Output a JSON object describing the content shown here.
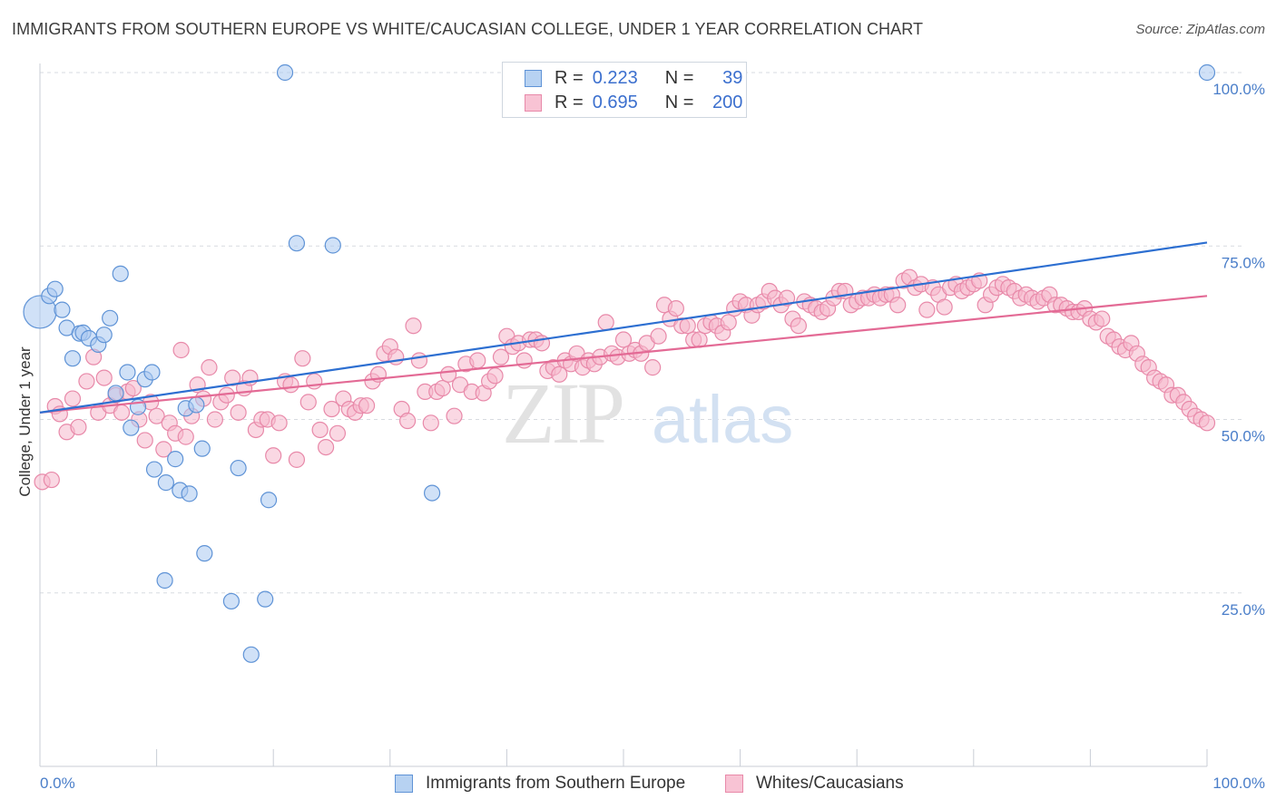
{
  "title": "IMMIGRANTS FROM SOUTHERN EUROPE VS WHITE/CAUCASIAN COLLEGE, UNDER 1 YEAR CORRELATION CHART",
  "source": "Source: ZipAtlas.com",
  "watermark": {
    "zip": "ZIP",
    "atlas": "atlas"
  },
  "legend": {
    "rows": [
      {
        "r_label": "R =",
        "r_value": "0.223",
        "n_label": "N =",
        "n_value": "39"
      },
      {
        "r_label": "R =",
        "r_value": "0.695",
        "n_label": "N =",
        "n_value": "200"
      }
    ]
  },
  "bottom_legend": {
    "series_a": "Immigrants from Southern Europe",
    "series_b": "Whites/Caucasians"
  },
  "colors": {
    "blue_fill": "#a9c8f0",
    "blue_stroke": "#5f93d6",
    "blue_line": "#2d6fd1",
    "pink_fill": "#f6b8cc",
    "pink_stroke": "#e889a9",
    "pink_line": "#e36a95",
    "grid": "#d7dbe0",
    "tick_text": "#4a7ec9"
  },
  "chart_data": {
    "type": "scatter",
    "title": "IMMIGRANTS FROM SOUTHERN EUROPE VS WHITE/CAUCASIAN COLLEGE, UNDER 1 YEAR CORRELATION CHART",
    "xlabel": "",
    "ylabel": "College, Under 1 year",
    "xlim": [
      0,
      100
    ],
    "ylim": [
      0,
      104
    ],
    "x_tick_labels": [
      "0.0%",
      "100.0%"
    ],
    "y_ticks": [
      {
        "value": 25,
        "label": "25.0%"
      },
      {
        "value": 50,
        "label": "50.0%"
      },
      {
        "value": 75,
        "label": "75.0%"
      },
      {
        "value": 100,
        "label": "100.0%"
      }
    ],
    "grid": "horizontal dashed",
    "legend_position": "top-center",
    "series": [
      {
        "name": "Immigrants from Southern Europe",
        "color": "#a9c8f0",
        "R": 0.223,
        "N": 39,
        "trend": {
          "x": [
            0,
            100
          ],
          "y": [
            51,
            75.5
          ]
        },
        "points": [
          [
            0.0,
            65.5,
            "big"
          ],
          [
            0.8,
            67.8
          ],
          [
            1.3,
            68.8
          ],
          [
            1.9,
            65.8
          ],
          [
            2.3,
            63.2
          ],
          [
            2.8,
            58.8
          ],
          [
            3.4,
            62.4
          ],
          [
            3.7,
            62.5
          ],
          [
            4.2,
            61.7
          ],
          [
            5.0,
            60.8
          ],
          [
            5.5,
            62.2
          ],
          [
            6.0,
            64.6
          ],
          [
            6.5,
            53.8
          ],
          [
            6.9,
            71.0
          ],
          [
            7.5,
            56.8
          ],
          [
            7.8,
            48.8
          ],
          [
            8.4,
            51.8
          ],
          [
            9.0,
            55.8
          ],
          [
            9.6,
            56.8
          ],
          [
            9.8,
            42.8
          ],
          [
            10.8,
            40.9
          ],
          [
            11.6,
            44.3
          ],
          [
            12.0,
            39.8
          ],
          [
            12.5,
            51.6
          ],
          [
            12.8,
            39.3
          ],
          [
            13.4,
            52.1
          ],
          [
            13.9,
            45.8
          ],
          [
            14.1,
            30.7
          ],
          [
            10.7,
            26.8
          ],
          [
            16.4,
            23.8
          ],
          [
            17.0,
            43.0
          ],
          [
            18.1,
            16.1
          ],
          [
            19.3,
            24.1
          ],
          [
            19.6,
            38.4
          ],
          [
            21.0,
            100.0
          ],
          [
            22.0,
            75.4
          ],
          [
            25.1,
            75.1
          ],
          [
            33.6,
            39.4
          ],
          [
            100.0,
            100.0
          ]
        ]
      },
      {
        "name": "Whites/Caucasians",
        "color": "#f6b8cc",
        "R": 0.695,
        "N": 200,
        "trend": {
          "x": [
            0,
            100
          ],
          "y": [
            51,
            67.8
          ]
        },
        "points": [
          [
            0.2,
            41.0
          ],
          [
            1.0,
            41.3
          ],
          [
            1.3,
            51.9
          ],
          [
            1.7,
            50.8
          ],
          [
            2.3,
            48.2
          ],
          [
            2.8,
            53.0
          ],
          [
            3.3,
            48.9
          ],
          [
            4.0,
            55.5
          ],
          [
            4.6,
            59.0
          ],
          [
            5.0,
            51.0
          ],
          [
            5.5,
            56.0
          ],
          [
            6.0,
            52.0
          ],
          [
            6.5,
            53.5
          ],
          [
            7.0,
            51.0
          ],
          [
            7.5,
            54.0
          ],
          [
            8.0,
            54.5
          ],
          [
            8.5,
            50.0
          ],
          [
            9.0,
            47.0
          ],
          [
            9.5,
            52.5
          ],
          [
            10.0,
            50.5
          ],
          [
            10.6,
            45.7
          ],
          [
            11.1,
            49.5
          ],
          [
            11.6,
            48.0
          ],
          [
            12.1,
            60.0
          ],
          [
            12.5,
            47.5
          ],
          [
            13.0,
            50.5
          ],
          [
            13.5,
            55.0
          ],
          [
            14.0,
            53.0
          ],
          [
            14.5,
            57.5
          ],
          [
            15.0,
            50.0
          ],
          [
            15.5,
            52.5
          ],
          [
            16.0,
            53.5
          ],
          [
            16.5,
            56.0
          ],
          [
            17.0,
            51.0
          ],
          [
            17.5,
            54.5
          ],
          [
            18.0,
            56.0
          ],
          [
            18.5,
            48.5
          ],
          [
            19.0,
            50.0
          ],
          [
            19.5,
            50.0
          ],
          [
            20.0,
            44.8
          ],
          [
            20.5,
            49.5
          ],
          [
            21.0,
            55.5
          ],
          [
            21.5,
            55.0
          ],
          [
            22.0,
            44.2
          ],
          [
            22.5,
            58.8
          ],
          [
            23.0,
            52.5
          ],
          [
            23.5,
            55.5
          ],
          [
            24.0,
            48.5
          ],
          [
            24.5,
            46.0
          ],
          [
            25.0,
            51.5
          ],
          [
            25.5,
            48.0
          ],
          [
            26.0,
            53.0
          ],
          [
            26.5,
            51.5
          ],
          [
            27.0,
            51.0
          ],
          [
            27.5,
            52.0
          ],
          [
            28.0,
            52.0
          ],
          [
            28.5,
            55.5
          ],
          [
            29.0,
            56.5
          ],
          [
            29.5,
            59.5
          ],
          [
            30.0,
            60.5
          ],
          [
            30.5,
            59.0
          ],
          [
            31.0,
            51.5
          ],
          [
            31.5,
            49.8
          ],
          [
            32.0,
            63.5
          ],
          [
            32.5,
            58.5
          ],
          [
            33.0,
            54.0
          ],
          [
            33.5,
            49.5
          ],
          [
            34.0,
            54.0
          ],
          [
            34.5,
            54.5
          ],
          [
            35.0,
            56.5
          ],
          [
            35.5,
            50.5
          ],
          [
            36.0,
            55.0
          ],
          [
            36.5,
            58.0
          ],
          [
            37.0,
            54.0
          ],
          [
            37.5,
            58.5
          ],
          [
            38.0,
            53.8
          ],
          [
            38.5,
            55.5
          ],
          [
            39.0,
            56.3
          ],
          [
            39.5,
            59.0
          ],
          [
            40.0,
            62.0
          ],
          [
            40.5,
            60.5
          ],
          [
            41.0,
            61.0
          ],
          [
            41.5,
            58.5
          ],
          [
            42.0,
            61.5
          ],
          [
            42.5,
            61.5
          ],
          [
            43.0,
            61.0
          ],
          [
            43.5,
            57.0
          ],
          [
            44.0,
            57.5
          ],
          [
            44.5,
            56.5
          ],
          [
            45.0,
            58.5
          ],
          [
            45.5,
            58.0
          ],
          [
            46.0,
            59.5
          ],
          [
            46.5,
            57.5
          ],
          [
            47.0,
            58.5
          ],
          [
            47.5,
            58.0
          ],
          [
            48.0,
            59.0
          ],
          [
            48.5,
            64.0
          ],
          [
            49.0,
            59.5
          ],
          [
            49.5,
            59.0
          ],
          [
            50.0,
            61.5
          ],
          [
            50.5,
            59.5
          ],
          [
            51.0,
            60.0
          ],
          [
            51.5,
            59.5
          ],
          [
            52.0,
            61.0
          ],
          [
            52.5,
            57.5
          ],
          [
            53.0,
            62.0
          ],
          [
            53.5,
            66.5
          ],
          [
            54.0,
            64.5
          ],
          [
            54.5,
            66.0
          ],
          [
            55.0,
            63.5
          ],
          [
            55.5,
            63.5
          ],
          [
            56.0,
            61.5
          ],
          [
            56.5,
            61.5
          ],
          [
            57.0,
            63.5
          ],
          [
            57.5,
            64.0
          ],
          [
            58.0,
            63.5
          ],
          [
            58.5,
            62.5
          ],
          [
            59.0,
            64.0
          ],
          [
            59.5,
            66.0
          ],
          [
            60.0,
            67.0
          ],
          [
            60.5,
            66.5
          ],
          [
            61.0,
            65.0
          ],
          [
            61.5,
            66.5
          ],
          [
            62.0,
            67.0
          ],
          [
            62.5,
            68.5
          ],
          [
            63.0,
            67.5
          ],
          [
            63.5,
            66.5
          ],
          [
            64.0,
            67.5
          ],
          [
            64.5,
            64.5
          ],
          [
            65.0,
            63.5
          ],
          [
            65.5,
            67.0
          ],
          [
            66.0,
            66.5
          ],
          [
            66.5,
            66.0
          ],
          [
            67.0,
            65.5
          ],
          [
            67.5,
            66.0
          ],
          [
            68.0,
            67.5
          ],
          [
            68.5,
            68.5
          ],
          [
            69.0,
            68.5
          ],
          [
            69.5,
            66.5
          ],
          [
            70.0,
            67.0
          ],
          [
            70.5,
            67.5
          ],
          [
            71.0,
            67.5
          ],
          [
            71.5,
            68.0
          ],
          [
            72.0,
            67.5
          ],
          [
            72.5,
            68.0
          ],
          [
            73.0,
            68.0
          ],
          [
            73.5,
            66.5
          ],
          [
            74.0,
            70.0
          ],
          [
            74.5,
            70.5
          ],
          [
            75.0,
            69.0
          ],
          [
            75.5,
            69.5
          ],
          [
            76.0,
            65.8
          ],
          [
            76.5,
            69.0
          ],
          [
            77.0,
            68.0
          ],
          [
            77.5,
            66.2
          ],
          [
            78.0,
            69.0
          ],
          [
            78.5,
            69.5
          ],
          [
            79.0,
            68.5
          ],
          [
            79.5,
            69.0
          ],
          [
            80.0,
            69.5
          ],
          [
            80.5,
            70.0
          ],
          [
            81.0,
            66.5
          ],
          [
            81.5,
            68.0
          ],
          [
            82.0,
            69.0
          ],
          [
            82.5,
            69.5
          ],
          [
            83.0,
            69.0
          ],
          [
            83.5,
            68.5
          ],
          [
            84.0,
            67.5
          ],
          [
            84.5,
            68.0
          ],
          [
            85.0,
            67.5
          ],
          [
            85.5,
            67.0
          ],
          [
            86.0,
            67.5
          ],
          [
            86.5,
            68.0
          ],
          [
            87.0,
            66.5
          ],
          [
            87.5,
            66.5
          ],
          [
            88.0,
            66.0
          ],
          [
            88.5,
            65.5
          ],
          [
            89.0,
            65.5
          ],
          [
            89.5,
            66.0
          ],
          [
            90.0,
            64.5
          ],
          [
            90.5,
            64.0
          ],
          [
            91.0,
            64.5
          ],
          [
            91.5,
            62.0
          ],
          [
            92.0,
            61.5
          ],
          [
            92.5,
            60.5
          ],
          [
            93.0,
            60.0
          ],
          [
            93.5,
            61.0
          ],
          [
            94.0,
            59.5
          ],
          [
            94.5,
            58.0
          ],
          [
            95.0,
            57.5
          ],
          [
            95.5,
            56.0
          ],
          [
            96.0,
            55.5
          ],
          [
            96.5,
            55.0
          ],
          [
            97.0,
            53.5
          ],
          [
            97.5,
            53.5
          ],
          [
            98.0,
            52.5
          ],
          [
            98.5,
            51.5
          ],
          [
            99.0,
            50.5
          ],
          [
            99.5,
            50.0
          ],
          [
            100.0,
            49.5
          ]
        ]
      }
    ]
  }
}
